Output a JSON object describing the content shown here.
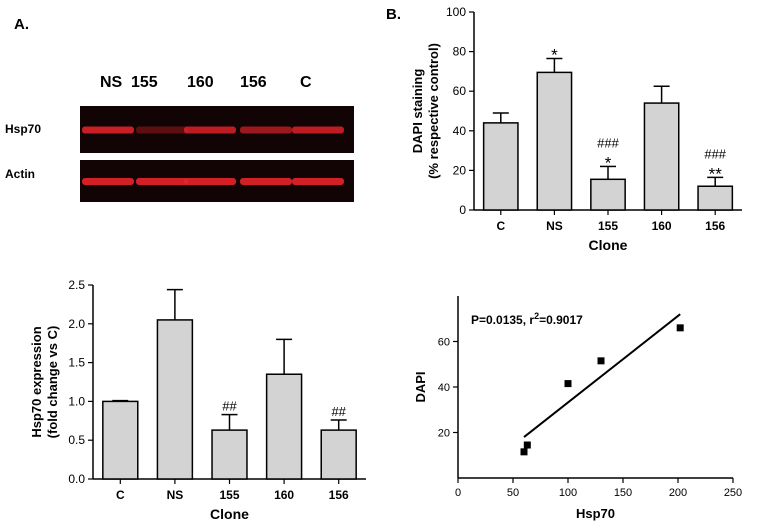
{
  "panel_a_label": "A.",
  "panel_b_label": "B.",
  "blot": {
    "lanes": [
      "NS",
      "155",
      "160",
      "156",
      "C"
    ],
    "rows": [
      {
        "label": "Hsp70",
        "intensities": [
          0.85,
          0.35,
          0.8,
          0.65,
          0.8
        ]
      },
      {
        "label": "Actin",
        "intensities": [
          0.9,
          0.9,
          0.9,
          0.9,
          0.9
        ]
      }
    ],
    "band_color": "#e8242a"
  },
  "chart_data": [
    {
      "id": "dapi",
      "type": "bar",
      "categories": [
        "C",
        "NS",
        "155",
        "160",
        "156"
      ],
      "values": [
        44,
        69.5,
        15.5,
        54,
        12
      ],
      "errors": [
        5,
        7,
        6.5,
        8.5,
        4.5
      ],
      "annotations": [
        "",
        "*",
        "###\n*",
        "",
        "###\n**"
      ],
      "xlabel": "Clone",
      "ylabel_line1": "DAPI staining",
      "ylabel_line2": "(% respective control)",
      "ylim": [
        0,
        100
      ],
      "yticks": [
        0,
        20,
        40,
        60,
        80,
        100
      ],
      "bar_color": "#d3d3d3"
    },
    {
      "id": "hsp70",
      "type": "bar",
      "categories": [
        "C",
        "NS",
        "155",
        "160",
        "156"
      ],
      "values": [
        1.0,
        2.05,
        0.63,
        1.35,
        0.63
      ],
      "errors": [
        0.01,
        0.39,
        0.2,
        0.45,
        0.13
      ],
      "annotations": [
        "",
        "",
        "##",
        "",
        "##"
      ],
      "xlabel": "Clone",
      "ylabel_line1": "Hsp70 expression",
      "ylabel_line2": "(fold change vs C)",
      "ylim": [
        0,
        2.5
      ],
      "yticks": [
        "0.0",
        "0.5",
        "1.0",
        "1.5",
        "2.0",
        "2.5"
      ],
      "bar_color": "#d3d3d3"
    },
    {
      "id": "scatter",
      "type": "scatter",
      "points": [
        [
          60,
          11.5
        ],
        [
          63,
          14.5
        ],
        [
          100,
          41.5
        ],
        [
          130,
          51.5
        ],
        [
          202,
          66
        ]
      ],
      "fit_line": [
        [
          60,
          18
        ],
        [
          202,
          72
        ]
      ],
      "annotation": "P=0.0135, r",
      "annotation_sup": "2",
      "annotation_tail": "=0.9017",
      "xlabel": "Hsp70",
      "ylabel": "DAPI",
      "xlim": [
        0,
        250
      ],
      "ylim": [
        0,
        80
      ],
      "xticks": [
        0,
        50,
        100,
        150,
        200,
        250
      ],
      "yticks": [
        20,
        40,
        60
      ]
    }
  ]
}
